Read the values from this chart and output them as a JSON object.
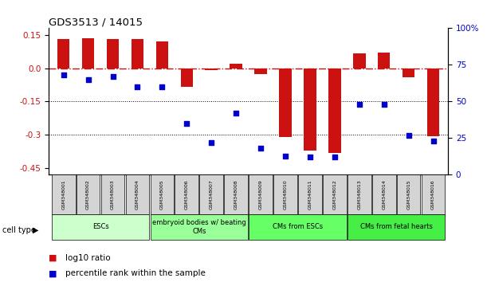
{
  "title": "GDS3513 / 14015",
  "samples": [
    "GSM348001",
    "GSM348002",
    "GSM348003",
    "GSM348004",
    "GSM348005",
    "GSM348006",
    "GSM348007",
    "GSM348008",
    "GSM348009",
    "GSM348010",
    "GSM348011",
    "GSM348012",
    "GSM348013",
    "GSM348014",
    "GSM348015",
    "GSM348016"
  ],
  "log10_ratio": [
    0.133,
    0.135,
    0.13,
    0.132,
    0.12,
    -0.085,
    -0.01,
    0.02,
    -0.025,
    -0.31,
    -0.37,
    -0.38,
    0.065,
    0.07,
    -0.04,
    -0.305
  ],
  "percentile_rank": [
    68,
    65,
    67,
    60,
    60,
    35,
    22,
    42,
    18,
    13,
    12,
    12,
    48,
    48,
    27,
    23
  ],
  "cell_types": [
    {
      "label": "ESCs",
      "start": 0,
      "end": 3,
      "color": "#ccffcc"
    },
    {
      "label": "embryoid bodies w/ beating\nCMs",
      "start": 4,
      "end": 7,
      "color": "#99ff99"
    },
    {
      "label": "CMs from ESCs",
      "start": 8,
      "end": 11,
      "color": "#66ff66"
    },
    {
      "label": "CMs from fetal hearts",
      "start": 12,
      "end": 15,
      "color": "#44ee44"
    }
  ],
  "bar_color": "#cc1111",
  "dot_color": "#0000cc",
  "zero_line_color": "#cc1111",
  "ylim_left": [
    -0.48,
    0.18
  ],
  "ylim_right": [
    0,
    100
  ],
  "yticks_left": [
    0.15,
    0.0,
    -0.15,
    -0.3,
    -0.45
  ],
  "yticks_right": [
    100,
    75,
    50,
    25,
    0
  ],
  "cell_type_label": "cell type"
}
